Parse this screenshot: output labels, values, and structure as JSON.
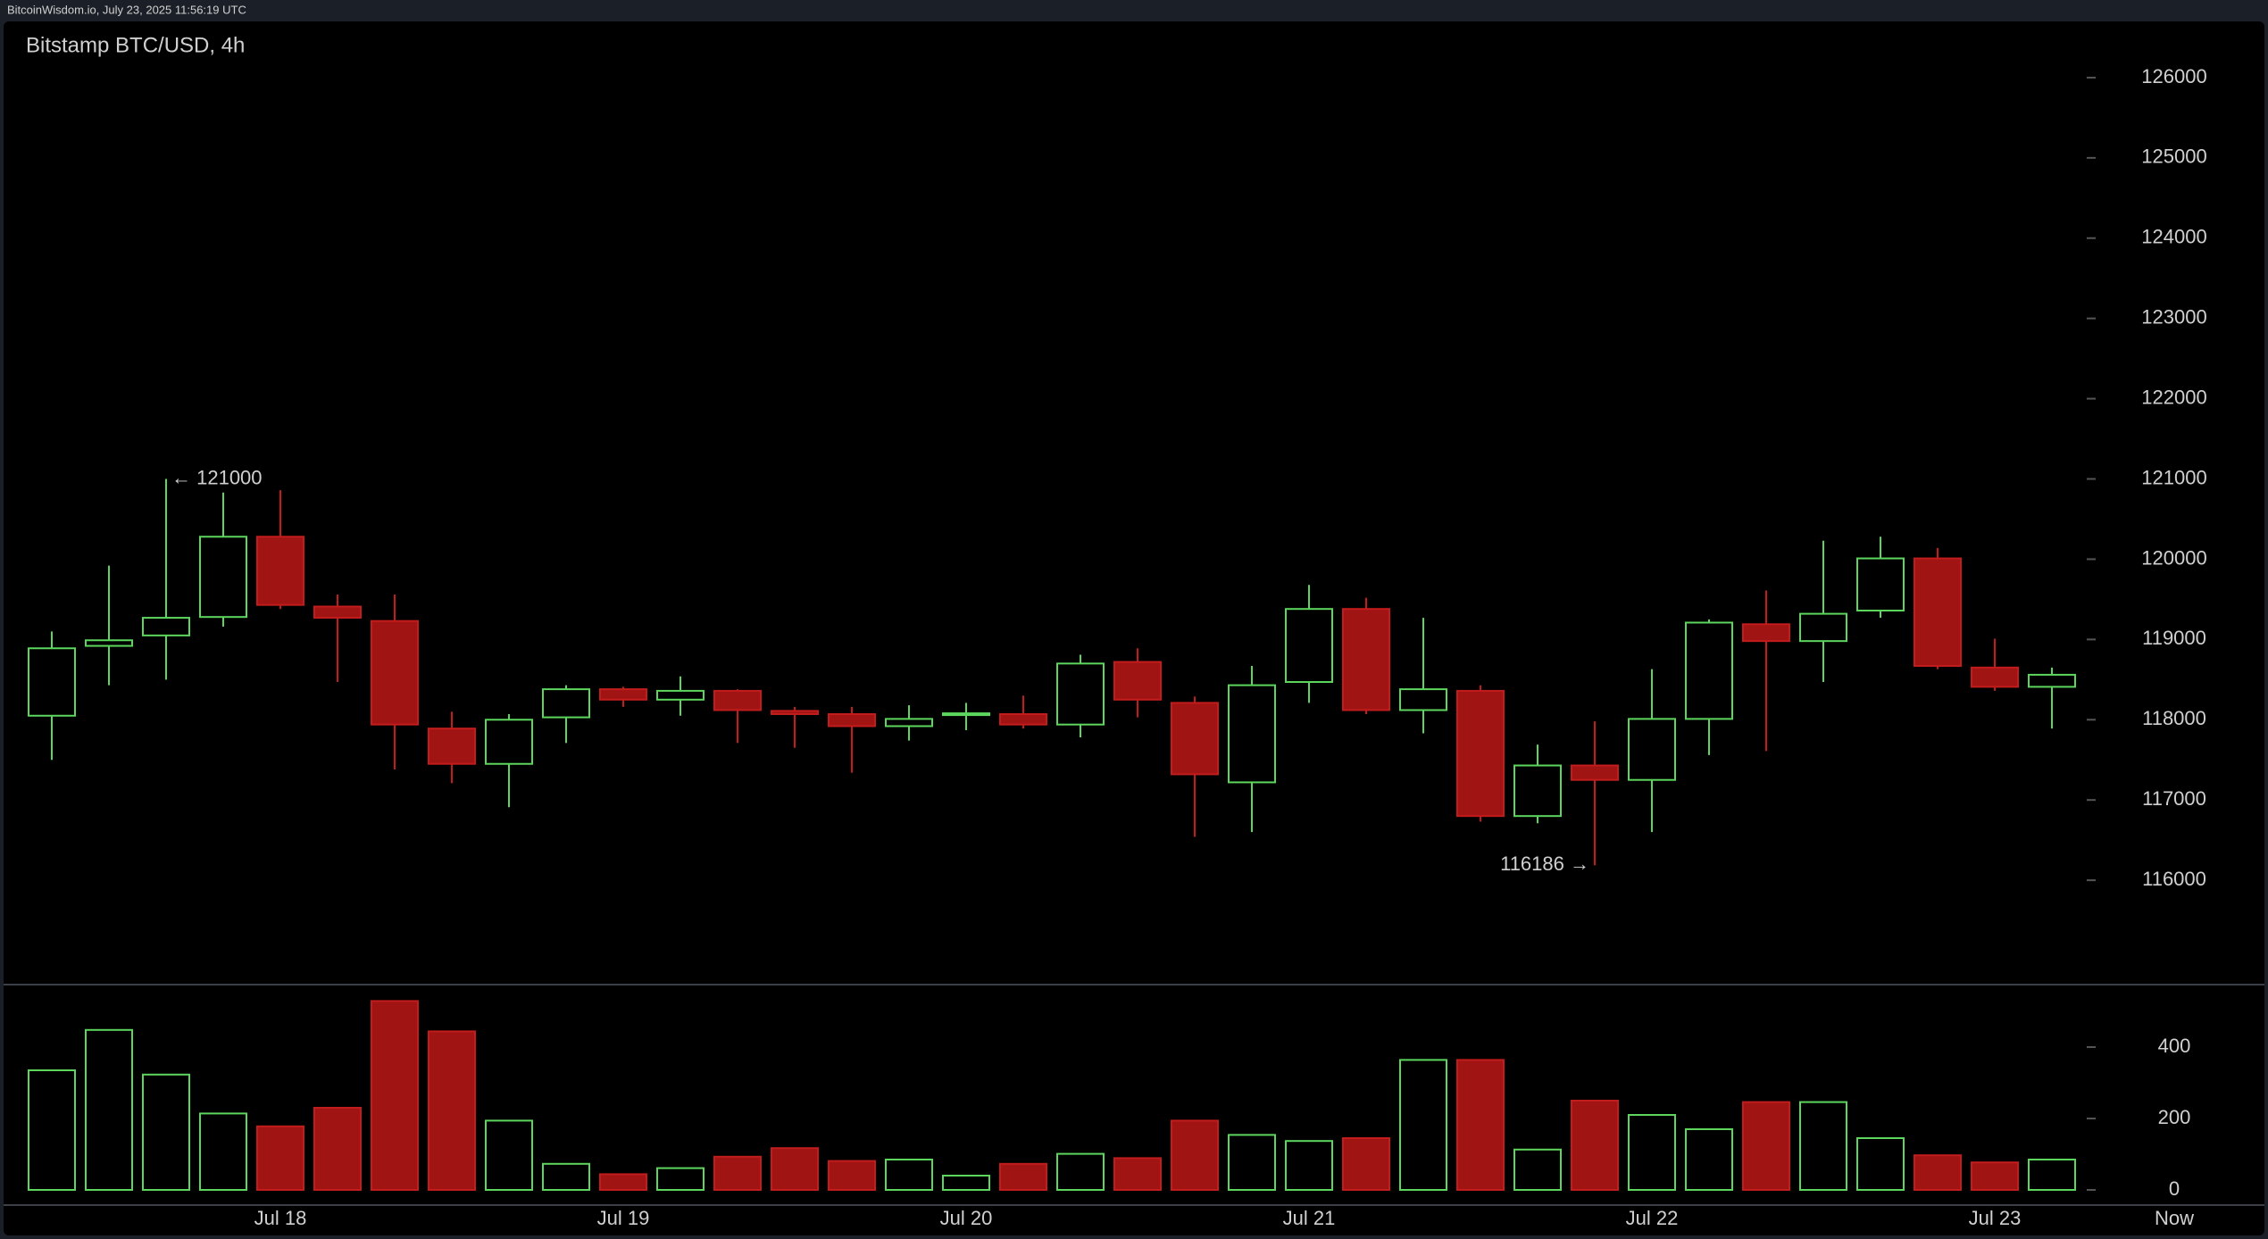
{
  "header": "BitcoinWisdom.io, July 23, 2025 11:56:19 UTC",
  "chart_data": {
    "type": "candlestick",
    "title": "Bitstamp BTC/USD, 4h",
    "categories": [
      null,
      null,
      null,
      null,
      "Jul 18",
      null,
      null,
      null,
      null,
      null,
      "Jul 19",
      null,
      null,
      null,
      null,
      null,
      "Jul 20",
      null,
      null,
      null,
      null,
      null,
      "Jul 21",
      null,
      null,
      null,
      null,
      null,
      "Jul 22",
      null,
      null,
      null,
      null,
      null,
      "Jul 23",
      null
    ],
    "now_label": "Now",
    "open": [
      118050,
      118920,
      119050,
      119280,
      120280,
      119410,
      119230,
      117890,
      117450,
      118030,
      118380,
      118250,
      118360,
      118110,
      118070,
      117920,
      118060,
      118070,
      117940,
      118720,
      118210,
      117220,
      118470,
      119380,
      118120,
      118360,
      116800,
      117430,
      117250,
      118010,
      119190,
      118980,
      119360,
      120010,
      118650,
      118410
    ],
    "high": [
      119100,
      119920,
      121000,
      120830,
      120860,
      119560,
      119560,
      118100,
      118070,
      118430,
      118410,
      118540,
      118380,
      118160,
      118160,
      118180,
      118210,
      118300,
      118810,
      118890,
      118290,
      118670,
      119680,
      119520,
      119270,
      118430,
      117690,
      117980,
      118630,
      119250,
      119610,
      120230,
      120280,
      120140,
      119010,
      118650
    ],
    "low": [
      117500,
      118430,
      118500,
      119160,
      119380,
      118470,
      117380,
      117210,
      116910,
      117710,
      118160,
      118050,
      117710,
      117650,
      117340,
      117740,
      117870,
      117890,
      117780,
      118030,
      116540,
      116600,
      118210,
      118070,
      117830,
      116730,
      116710,
      116186,
      116600,
      117560,
      117610,
      118470,
      119270,
      118630,
      118360,
      117890
    ],
    "close": [
      118890,
      118990,
      119270,
      120280,
      119430,
      119270,
      117940,
      117450,
      118000,
      118380,
      118250,
      118360,
      118120,
      118070,
      117920,
      118010,
      118080,
      117940,
      118700,
      118250,
      117320,
      118430,
      119380,
      118120,
      118380,
      116800,
      117430,
      117250,
      118010,
      119210,
      118980,
      119320,
      120010,
      118670,
      118410,
      118560
    ],
    "volume": [
      335,
      448,
      323,
      214,
      178,
      230,
      529,
      444,
      194,
      73,
      44,
      61,
      93,
      117,
      81,
      85,
      40,
      73,
      101,
      89,
      194,
      154,
      137,
      145,
      364,
      364,
      113,
      250,
      210,
      170,
      246,
      246,
      145,
      97,
      77,
      85
    ],
    "up_color": "#5cd65c",
    "down_color": "#a01414",
    "ylim": [
      114700,
      126700
    ],
    "yticks": [
      116000,
      117000,
      118000,
      119000,
      120000,
      121000,
      122000,
      123000,
      124000,
      125000,
      126000
    ],
    "volume_ylim": [
      0,
      575
    ],
    "volume_yticks": [
      0,
      200,
      400
    ],
    "annotations": [
      {
        "text": "← 121000",
        "value": 121000
      },
      {
        "text": "116186 →",
        "value": 116186
      }
    ]
  }
}
